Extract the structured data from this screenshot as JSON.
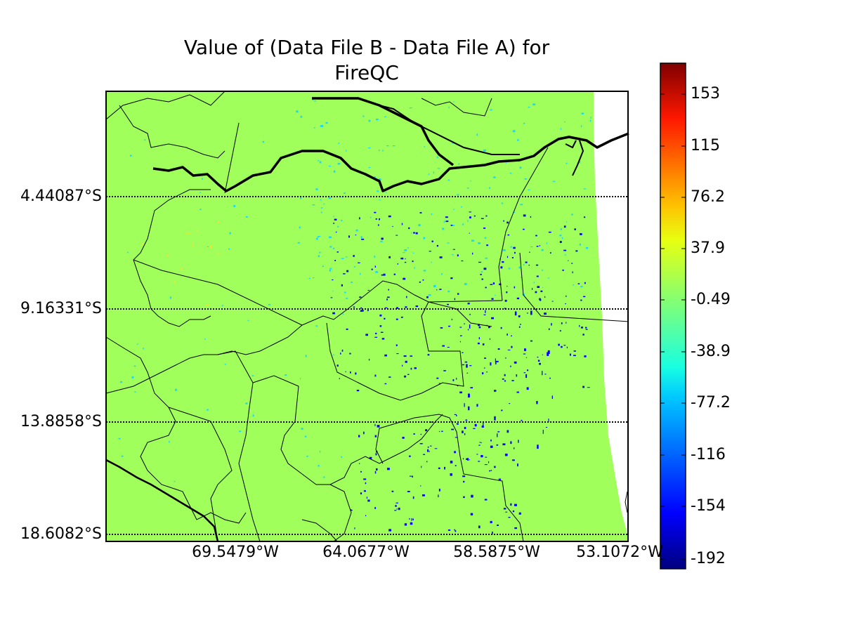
{
  "title_line1": "Value of (Data File B - Data File A) for",
  "title_line2": "FireQC",
  "lat_labels": [
    "4.44087°S",
    "9.16331°S",
    "13.8858°S",
    "18.6082°S"
  ],
  "lon_labels": [
    "69.5479°W",
    "64.0677°W",
    "58.5875°W",
    "53.1072°W"
  ],
  "colorbar": {
    "tick_labels": [
      "153",
      "115",
      "76.2",
      "37.9",
      "-0.49",
      "-38.9",
      "-77.2",
      "-116",
      "-154",
      "-192"
    ],
    "colormap": "jet"
  },
  "colors": {
    "field": "#a0ff5a",
    "frame": "#000000"
  },
  "chart_data": {
    "type": "heatmap",
    "title": "Value of (Data File B - Data File A) for FireQC",
    "projection": "cylindrical map with parallels",
    "parallels_deg_S": [
      4.44087,
      9.16331,
      13.8858,
      18.6082
    ],
    "meridians_deg_W": [
      69.5479,
      64.0677,
      58.5875,
      53.1072
    ],
    "colorbar_range": [
      -192,
      153
    ],
    "dominant_value": -0.49,
    "notes": "field mostly near zero; scattered negative (blue) pixels in central/south-east; few small positive (yellow) pixels in north-west"
  }
}
